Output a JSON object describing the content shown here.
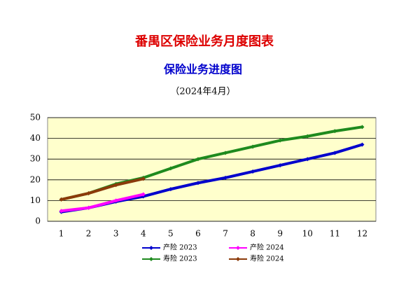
{
  "chart_data": {
    "type": "line",
    "title": "番禺区保险业务月度图表",
    "subtitle": "保险业务进度图",
    "note": "（2024年4月）",
    "categories": [
      "1",
      "2",
      "3",
      "4",
      "5",
      "6",
      "7",
      "8",
      "9",
      "10",
      "11",
      "12"
    ],
    "series": [
      {
        "name": "产险 2023",
        "color": "#0000cc",
        "values": [
          4.5,
          6.5,
          9.5,
          12,
          15.5,
          18.5,
          21,
          24,
          27,
          30,
          33,
          37
        ]
      },
      {
        "name": "产险 2024",
        "color": "#ff00ff",
        "values": [
          5,
          6.5,
          10,
          13,
          null,
          null,
          null,
          null,
          null,
          null,
          null,
          null
        ]
      },
      {
        "name": "寿险 2023",
        "color": "#1e8a1e",
        "values": [
          10.5,
          13.5,
          18,
          21,
          25.5,
          30,
          33,
          36,
          39,
          41,
          43.5,
          45.5
        ]
      },
      {
        "name": "寿险 2024",
        "color": "#8b3a0a",
        "values": [
          10.5,
          13.5,
          17.5,
          20.5,
          null,
          null,
          null,
          null,
          null,
          null,
          null,
          null
        ]
      }
    ],
    "ylim": [
      0,
      50
    ],
    "yticks": [
      0,
      10,
      20,
      30,
      40,
      50
    ],
    "grid": true
  }
}
